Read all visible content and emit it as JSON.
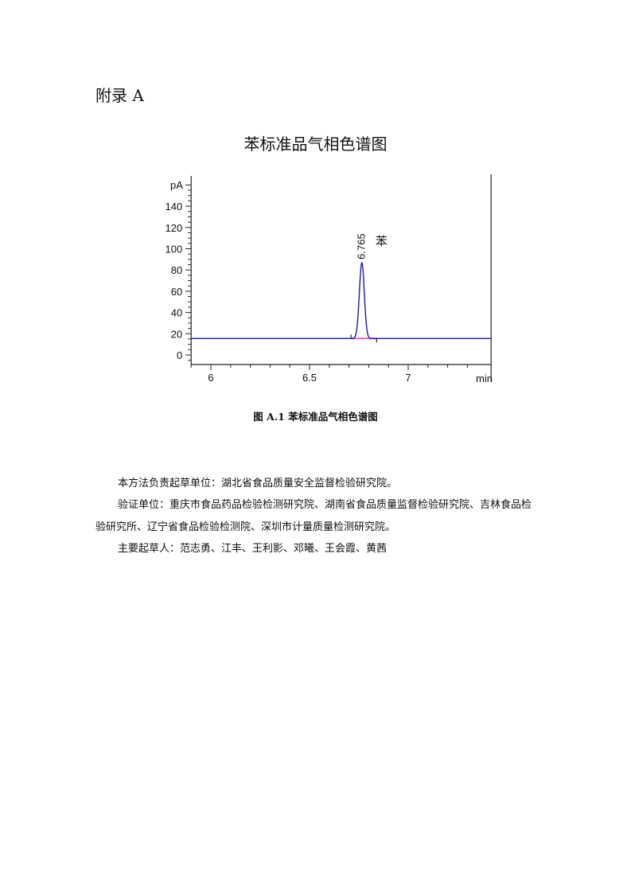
{
  "appendix_heading": "附录 A",
  "figure_title": "苯标准品气相色谱图",
  "figure_caption": "图 A.1  苯标准品气相色谱图",
  "paragraphs": [
    "本方法负责起草单位：湖北省食品质量安全监督检验研究院。",
    "验证单位：重庆市食品药品检验检测研究院、湖南省食品质量监督检验研究院、吉林食品检验研究所、辽宁省食品检验检测院、深圳市计量质量检测研究院。",
    "主要起草人：范志勇、江丰、王利影、邓曦、王会霞、黄茜"
  ],
  "chart_data": {
    "type": "line",
    "title": "苯标准品气相色谱图",
    "xlabel": "min",
    "ylabel": "pA",
    "xlim": [
      5.9,
      7.42
    ],
    "ylim": [
      -9,
      164
    ],
    "x_ticks": [
      "6",
      "6.5",
      "7"
    ],
    "x_tick_values": [
      6,
      6.5,
      7
    ],
    "y_ticks": [
      "0",
      "20",
      "40",
      "60",
      "80",
      "100",
      "120",
      "140"
    ],
    "y_tick_values": [
      0,
      20,
      40,
      60,
      80,
      100,
      120,
      140
    ],
    "grid": false,
    "baseline_pA": 15.5,
    "peaks": [
      {
        "retention_time": 6.765,
        "label": "6.765",
        "compound": "苯",
        "height_pA": 87,
        "start": 6.71,
        "end": 6.84
      }
    ],
    "colors": {
      "trace": "#1a1aa8",
      "baseline_fill": "#e060d0",
      "axis": "#222222"
    }
  }
}
